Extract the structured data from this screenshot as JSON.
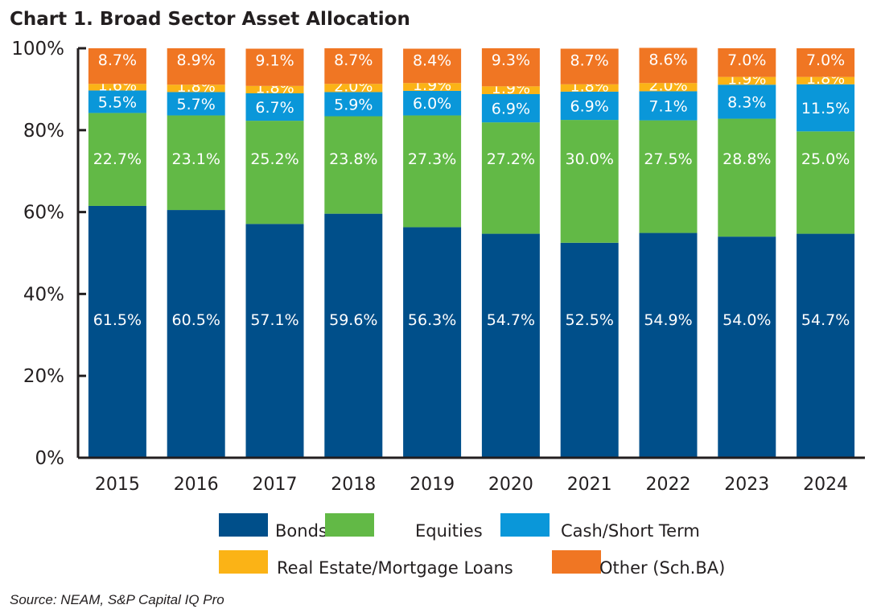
{
  "chart_data": {
    "type": "bar",
    "stacked": true,
    "title": "Chart 1. Broad Sector Asset Allocation",
    "source": "Source: NEAM, S&P Capital IQ Pro",
    "categories": [
      "2015",
      "2016",
      "2017",
      "2018",
      "2019",
      "2020",
      "2021",
      "2022",
      "2023",
      "2024"
    ],
    "ylim": [
      0,
      100
    ],
    "yticks": [
      "0%",
      "20%",
      "40%",
      "60%",
      "80%",
      "100%"
    ],
    "grid": false,
    "legend_position": "bottom",
    "series": [
      {
        "name": "Bonds",
        "color": "#004f8a",
        "values": [
          61.5,
          60.5,
          57.1,
          59.6,
          56.3,
          54.7,
          52.5,
          54.9,
          54.0,
          54.7
        ],
        "labels": [
          "61.5%",
          "60.5%",
          "57.1%",
          "59.6%",
          "56.3%",
          "54.7%",
          "52.5%",
          "54.9%",
          "54.0%",
          "54.7%"
        ]
      },
      {
        "name": "Equities",
        "color": "#62b946",
        "values": [
          22.7,
          23.1,
          25.2,
          23.8,
          27.3,
          27.2,
          30.0,
          27.5,
          28.8,
          25.0
        ],
        "labels": [
          "22.7%",
          "23.1%",
          "25.2%",
          "23.8%",
          "27.3%",
          "27.2%",
          "30.0%",
          "27.5%",
          "28.8%",
          "25.0%"
        ]
      },
      {
        "name": "Cash/Short Term",
        "color": "#0a97d9",
        "values": [
          5.5,
          5.7,
          6.7,
          5.9,
          6.0,
          6.9,
          6.9,
          7.1,
          8.3,
          11.5
        ],
        "labels": [
          "5.5%",
          "5.7%",
          "6.7%",
          "5.9%",
          "6.0%",
          "6.9%",
          "6.9%",
          "7.1%",
          "8.3%",
          "11.5%"
        ]
      },
      {
        "name": "Real Estate/Mortgage Loans",
        "color": "#fbb316",
        "values": [
          1.6,
          1.8,
          1.8,
          2.0,
          1.9,
          1.9,
          1.8,
          2.0,
          1.9,
          1.8
        ],
        "labels": [
          "1.6%",
          "1.8%",
          "1.8%",
          "2.0%",
          "1.9%",
          "1.9%",
          "1.8%",
          "2.0%",
          "1.9%",
          "1.8%"
        ]
      },
      {
        "name": "Other (Sch.BA)",
        "color": "#f07623",
        "values": [
          8.7,
          8.9,
          9.1,
          8.7,
          8.4,
          9.3,
          8.7,
          8.6,
          7.0,
          7.0
        ],
        "labels": [
          "8.7%",
          "8.9%",
          "9.1%",
          "8.7%",
          "8.4%",
          "9.3%",
          "8.7%",
          "8.6%",
          "7.0%",
          "7.0%"
        ]
      }
    ]
  }
}
